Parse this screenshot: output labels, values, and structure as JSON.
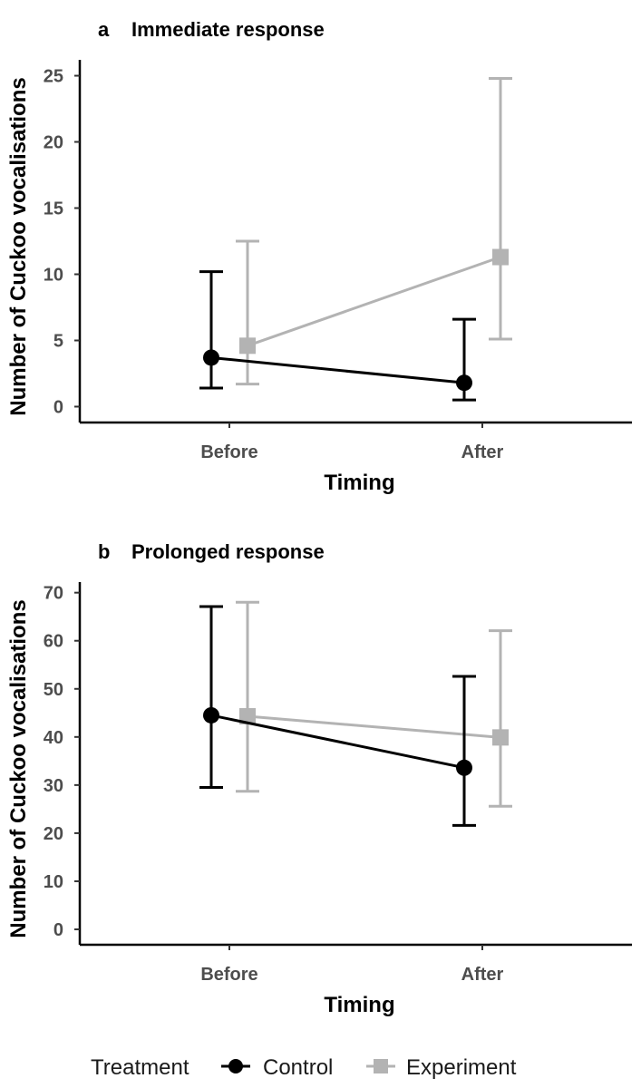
{
  "chart_data": [
    {
      "type": "line",
      "panel_letter": "a",
      "title": "Immediate response",
      "xlabel": "Timing",
      "ylabel": "Number of Cuckoo vocalisations",
      "categories": [
        "Before",
        "After"
      ],
      "ylim": [
        -1.2,
        26.2
      ],
      "yticks": [
        0,
        5,
        10,
        15,
        20,
        25
      ],
      "grid": false,
      "series": [
        {
          "name": "Control",
          "color": "#000000",
          "marker": "circle",
          "values": [
            3.7,
            1.8
          ],
          "error_low": [
            1.4,
            0.5
          ],
          "error_high": [
            10.2,
            6.6
          ]
        },
        {
          "name": "Experiment",
          "color": "#b3b3b3",
          "marker": "square",
          "values": [
            4.6,
            11.3
          ],
          "error_low": [
            1.7,
            5.1
          ],
          "error_high": [
            12.5,
            24.8
          ]
        }
      ]
    },
    {
      "type": "line",
      "panel_letter": "b",
      "title": "Prolonged response",
      "xlabel": "Timing",
      "ylabel": "Number of Cuckoo vocalisations",
      "categories": [
        "Before",
        "After"
      ],
      "ylim": [
        -3.2,
        72.2
      ],
      "yticks": [
        0,
        10,
        20,
        30,
        40,
        50,
        60,
        70
      ],
      "grid": false,
      "series": [
        {
          "name": "Control",
          "color": "#000000",
          "marker": "circle",
          "values": [
            44.5,
            33.6
          ],
          "error_low": [
            29.5,
            21.6
          ],
          "error_high": [
            67.1,
            52.6
          ]
        },
        {
          "name": "Experiment",
          "color": "#b3b3b3",
          "marker": "square",
          "values": [
            44.3,
            39.9
          ],
          "error_low": [
            28.7,
            25.6
          ],
          "error_high": [
            68.0,
            62.1
          ]
        }
      ]
    }
  ],
  "legend": {
    "title": "Treatment",
    "position": "bottom",
    "items": [
      {
        "label": "Control",
        "color": "#000000",
        "marker": "circle"
      },
      {
        "label": "Experiment",
        "color": "#b3b3b3",
        "marker": "square"
      }
    ]
  }
}
